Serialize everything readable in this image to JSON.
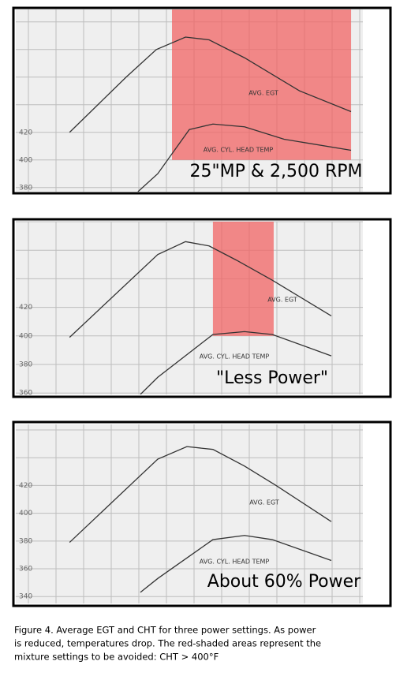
{
  "chart_data": [
    {
      "type": "line",
      "xlim": [
        0,
        100
      ],
      "ylim": [
        377,
        509
      ],
      "yticks": [
        420,
        400,
        380
      ],
      "shade": {
        "x": [
          45,
          96.6
        ],
        "from": 400
      },
      "label": "25\"MP & 2,500 RPM",
      "series": [
        {
          "name": "AVG. EGT",
          "color": "#333333",
          "x": [
            15.5,
            31.8,
            40.5,
            48.9,
            55.7,
            65.9,
            81.8,
            96.6
          ],
          "values": [
            420,
            460,
            480,
            489,
            487,
            474,
            450,
            435
          ]
        },
        {
          "name": "AVG. CYL. HEAD TEMP",
          "color": "#333333",
          "x": [
            35.2,
            40.9,
            50,
            56.8,
            65.9,
            77.3,
            96.6
          ],
          "values": [
            377,
            390,
            422,
            426,
            424,
            415,
            407
          ]
        }
      ]
    },
    {
      "type": "line",
      "xlim": [
        0,
        100
      ],
      "ylim": [
        359,
        480
      ],
      "yticks": [
        420,
        400,
        380,
        360
      ],
      "shade": {
        "x": [
          56.8,
          74.3
        ],
        "from": 400
      },
      "label": "\"Less Power\"",
      "series": [
        {
          "name": "AVG. EGT",
          "color": "#333333",
          "x": [
            15.5,
            40.9,
            48.9,
            55.7,
            63.6,
            73.9,
            90.9
          ],
          "values": [
            399,
            457,
            466,
            463,
            453,
            439,
            414
          ]
        },
        {
          "name": "AVG. CYL. HEAD TEMP",
          "color": "#333333",
          "x": [
            35.9,
            40.9,
            56.8,
            65.9,
            73.9,
            90.9
          ],
          "values": [
            359,
            371,
            401,
            403,
            401,
            386
          ]
        }
      ]
    },
    {
      "type": "line",
      "xlim": [
        0,
        100
      ],
      "ylim": [
        335,
        464
      ],
      "yticks": [
        420,
        400,
        380,
        360,
        340
      ],
      "label": "About 60% Power",
      "series": [
        {
          "name": "AVG. EGT",
          "color": "#333333",
          "x": [
            15.5,
            40.9,
            49.3,
            56.8,
            65.9,
            75,
            90.9
          ],
          "values": [
            379,
            439,
            448,
            446,
            434,
            420,
            394
          ]
        },
        {
          "name": "AVG. CYL. HEAD TEMP",
          "color": "#333333",
          "x": [
            35.9,
            40.9,
            56.8,
            65.9,
            73.9,
            90.9
          ],
          "values": [
            343,
            353,
            381,
            384,
            381,
            366
          ]
        }
      ]
    }
  ],
  "caption": [
    "Figure 4.  Average EGT and CHT for three power settings.  As power",
    "is reduced, temperatures drop.  The red-shaded areas represent the",
    "mixture settings to be avoided: CHT > 400°F"
  ]
}
